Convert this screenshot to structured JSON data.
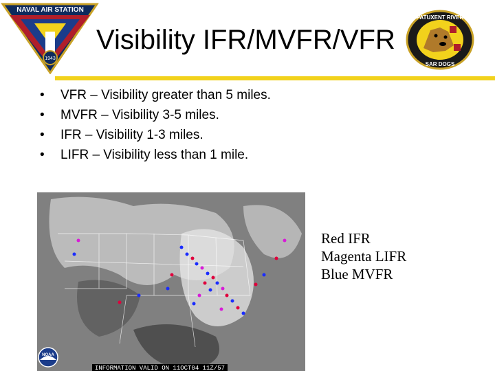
{
  "slide": {
    "title": "Visibility IFR/MVFR/VFR",
    "accent_color": "#f2d21c"
  },
  "logos": {
    "left": {
      "icon": "naval-air-station-emblem",
      "text": "NAVAL AIR STATION",
      "year": "1943"
    },
    "right": {
      "icon": "patuxent-river-sar-dogs-badge",
      "top_text": "PATUXENT RIVER",
      "bottom_text": "SAR DOGS"
    }
  },
  "bullets": [
    "VFR – Visibility greater than 5 miles.",
    "MVFR – Visibility 3-5 miles.",
    "IFR – Visibility 1-3 miles.",
    "LIFR – Visibility less than 1 mile."
  ],
  "map": {
    "icon": "us-satellite-weather-map",
    "caption": "INFORMATION VALID ON 11OCT04 11Z/57",
    "noaa_icon": "noaa-logo",
    "noaa_text": "NOAA"
  },
  "legend": [
    {
      "text": "Red IFR",
      "color": "#e0003c"
    },
    {
      "text": "Magenta LIFR",
      "color": "#d81bd8"
    },
    {
      "text": "Blue MVFR",
      "color": "#1a2cff"
    }
  ]
}
